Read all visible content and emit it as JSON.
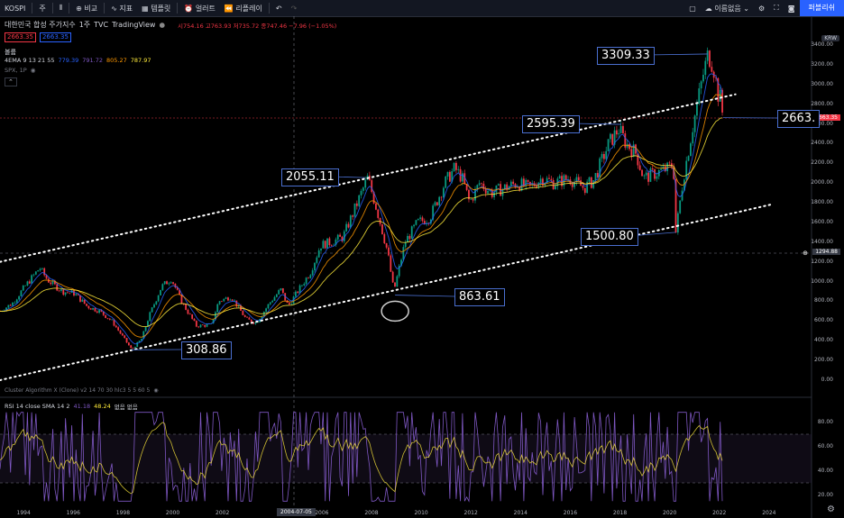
{
  "toolbar": {
    "symbol": "KOSPI",
    "interval": "주",
    "compare": "비교",
    "indicators": "지표",
    "templates": "템플릿",
    "alert": "얼러트",
    "replay": "리플레이",
    "layout_name": "이름없음",
    "publish": "퍼블리쉬"
  },
  "legend": {
    "title": "대한민국 합성 주가지수",
    "interval": "1주",
    "source": "TVC",
    "provider": "TradingView",
    "ohlc": "시754.16 고763.93 저735.72 종747.46 −7.96 (−1.05%)",
    "bid": "2663.35",
    "ask": "2663.35",
    "volume_label": "볼륨",
    "ema_label": "4EMA 9 13 21 55",
    "ema_values": [
      "779.39",
      "791.72",
      "805.27",
      "787.97"
    ],
    "spx_label": "SPX, 1P"
  },
  "chart_data": {
    "type": "line",
    "x_ticks": [
      "1994",
      "1996",
      "1998",
      "2000",
      "2002",
      "2004-07-05",
      "2006",
      "2008",
      "2010",
      "2012",
      "2014",
      "2016",
      "2018",
      "2020",
      "2022",
      "2024"
    ],
    "y_ticks": [
      "3400.00",
      "3200.00",
      "3000.00",
      "2800.00",
      "2600.00",
      "2400.00",
      "2200.00",
      "2000.00",
      "1800.00",
      "1600.00",
      "1400.00",
      "1200.00",
      "1000.00",
      "800.00",
      "600.00",
      "400.00",
      "200.00",
      "0.00"
    ],
    "price_scale_mode": "KRW",
    "last_price": "2663.35",
    "crosshair_price": "1294.88",
    "crosshair_date": "2004-07-05",
    "annotations": [
      "3309.33",
      "2595.39",
      "2055.11",
      "2663.",
      "1500.80",
      "863.61",
      "308.86"
    ],
    "series": [
      {
        "x": [
          1993.0,
          1993.5,
          1994.0,
          1994.6,
          1994.9,
          1995.5,
          1996.0,
          1996.5,
          1997.0,
          1997.5,
          1998.0,
          1998.3,
          1998.7,
          1999.0,
          1999.5,
          1999.9,
          2000.3,
          2000.9,
          2001.5,
          2001.8,
          2002.3,
          2002.9,
          2003.3,
          2003.9,
          2004.3,
          2004.6,
          2004.9,
          2005.5,
          2005.9,
          2006.3,
          2006.8,
          2007.3,
          2007.8,
          2008.2,
          2008.6,
          2008.85,
          2009.3,
          2009.8,
          2010.3,
          2010.9,
          2011.3,
          2011.6,
          2011.9,
          2012.3,
          2012.8,
          2013.3,
          2013.8,
          2014.3,
          2014.8,
          2015.3,
          2015.9,
          2016.5,
          2016.9,
          2017.5,
          2017.9,
          2018.2,
          2018.6,
          2018.9,
          2019.4,
          2019.9,
          2020.1,
          2020.2,
          2020.5,
          2020.9,
          2021.3,
          2021.5,
          2021.7,
          2021.9,
          2022.0,
          2022.1
        ],
        "y": [
          700,
          780,
          950,
          1140,
          1020,
          900,
          880,
          750,
          700,
          600,
          420,
          310,
          420,
          650,
          950,
          1030,
          800,
          550,
          560,
          800,
          850,
          620,
          580,
          800,
          920,
          750,
          870,
          1100,
          1370,
          1400,
          1450,
          1750,
          2055,
          1700,
          1300,
          900,
          1400,
          1600,
          1650,
          2000,
          2150,
          2050,
          1800,
          2000,
          1900,
          1950,
          2000,
          1950,
          2050,
          2000,
          2050,
          1950,
          2030,
          2400,
          2550,
          2400,
          2300,
          2050,
          2100,
          2150,
          2200,
          1500,
          2050,
          2600,
          3100,
          3309,
          3200,
          2900,
          2850,
          2663
        ]
      },
      {
        "x": [
          2008.5,
          2008.7,
          2008.85,
          2009.0,
          2009.2
        ],
        "y": [
          1100,
          900,
          863.61,
          950,
          1200
        ]
      },
      {
        "x": [
          1993.0,
          2022.6
        ],
        "y": [
          1200,
          2900
        ]
      },
      {
        "x": [
          1993.0,
          2024.0
        ],
        "y": [
          0,
          1780
        ]
      }
    ],
    "ylim": [
      0,
      3500
    ],
    "rsi": {
      "label": "RSI 14 close SMA 14 2",
      "values_text": "41.18",
      "values_text2": "48.24",
      "suffix": "없음 없음",
      "y_ticks": [
        "80.00",
        "60.00",
        "40.00",
        "20.00"
      ],
      "upper": 70,
      "lower": 30
    },
    "cluster_label": "Cluster Algorithm X (Clone) v2 14 70 30 hlc3 5 5 60 5"
  },
  "colors": {
    "background": "#000000",
    "candle_up": "#089981",
    "candle_down": "#f23645",
    "ema_fast": "#2962ff",
    "ema_slow": "#ff9800",
    "rsi_line": "#7e57c2",
    "rsi_signal": "#ffeb3b",
    "callout_border": "#4a6fd0"
  }
}
